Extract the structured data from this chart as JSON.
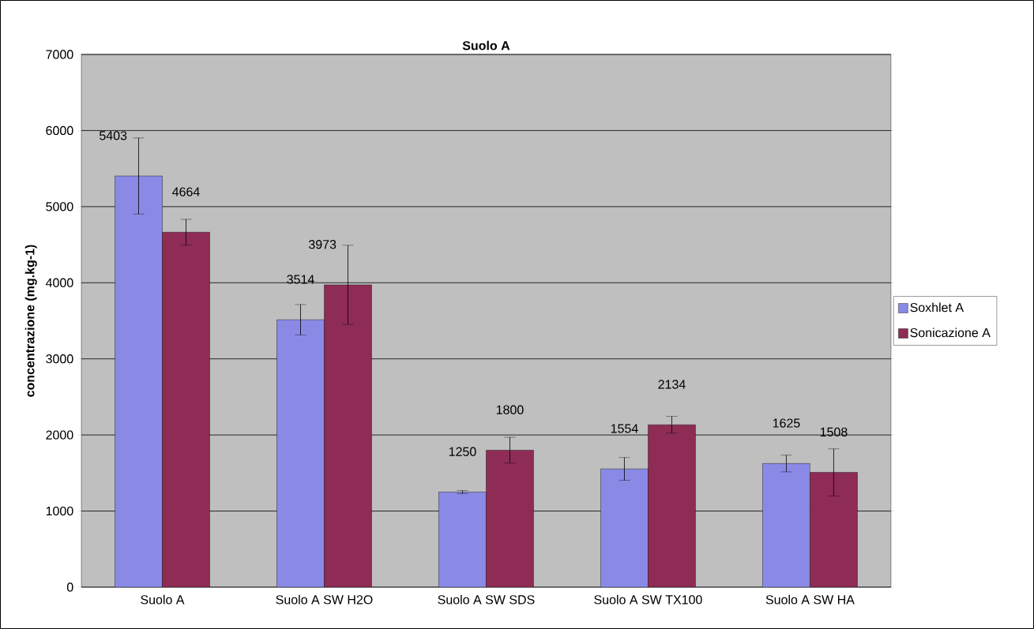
{
  "chart_data": {
    "type": "bar",
    "title": "Suolo A",
    "ylabel": "concentrazione (mg.kg-1)",
    "categories": [
      "Suolo A",
      "Suolo A  SW H2O",
      "Suolo A  SW SDS",
      "Suolo A  SW TX100",
      "Suolo A  SW HA"
    ],
    "series": [
      {
        "name": "Soxhlet A",
        "color": "#8a8ae6",
        "values": [
          5403,
          3514,
          1250,
          1554,
          1625
        ],
        "value_labels": [
          "5403",
          "3514",
          "1250",
          "1554",
          "1625"
        ],
        "errors": [
          500,
          200,
          20,
          150,
          110
        ]
      },
      {
        "name": "Sonicazione A",
        "color": "#8e2c56",
        "values": [
          4664,
          3973,
          1800,
          2134,
          1508
        ],
        "value_labels": [
          "4664",
          "3973",
          "1800",
          "2134",
          "1508"
        ],
        "errors": [
          170,
          520,
          170,
          110,
          310
        ]
      }
    ],
    "ylim": [
      0,
      7000
    ],
    "yticks": [
      0,
      1000,
      2000,
      3000,
      4000,
      5000,
      6000,
      7000
    ],
    "grid": "y",
    "legend": "right"
  }
}
